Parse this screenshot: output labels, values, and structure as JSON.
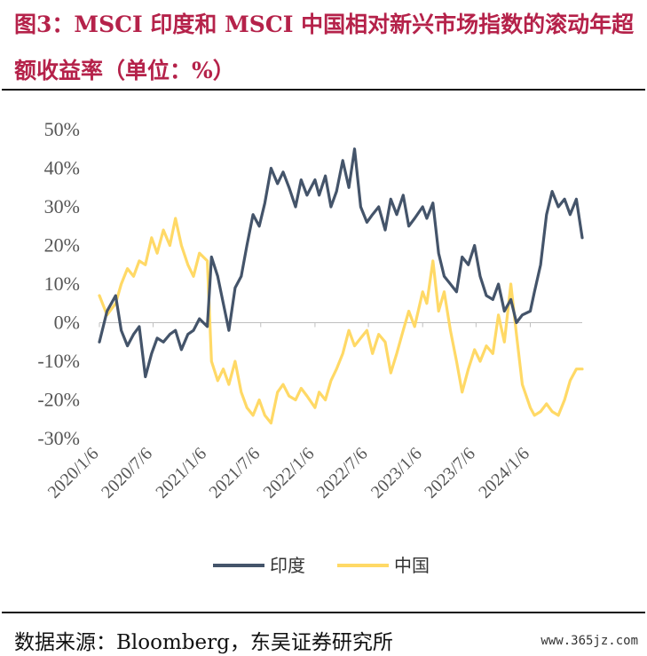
{
  "header": {
    "title": "图3：MSCI 印度和 MSCI 中国相对新兴市场指数的滚动年超额收益率（单位：%）"
  },
  "footer": {
    "source": "数据来源：Bloomberg，东吴证券研究所",
    "watermark": "www.365jz.com"
  },
  "colors": {
    "india": "#44546a",
    "china": "#ffd966",
    "title": "#b5224a"
  },
  "chart_data": {
    "type": "line",
    "title": "",
    "xlabel": "",
    "ylabel": "",
    "ylim": [
      -30,
      50
    ],
    "y_ticks": [
      "50%",
      "40%",
      "30%",
      "20%",
      "10%",
      "0%",
      "-10%",
      "-20%",
      "-30%"
    ],
    "x_range": [
      "2020-01-06",
      "2024-06-30"
    ],
    "x_ticks": [
      "2020/1/6",
      "2020/7/6",
      "2021/1/6",
      "2021/7/6",
      "2022/1/6",
      "2022/7/6",
      "2023/1/6",
      "2023/7/6",
      "2024/1/6"
    ],
    "legend_position": "bottom",
    "series": [
      {
        "name": "印度",
        "color": "#44546a",
        "x": [
          "2020-01-06",
          "2020-02-01",
          "2020-03-01",
          "2020-03-20",
          "2020-04-10",
          "2020-05-01",
          "2020-05-20",
          "2020-06-10",
          "2020-07-01",
          "2020-07-20",
          "2020-08-10",
          "2020-09-01",
          "2020-09-20",
          "2020-10-10",
          "2020-11-01",
          "2020-11-20",
          "2020-12-10",
          "2021-01-06",
          "2021-01-20",
          "2021-02-10",
          "2021-03-01",
          "2021-03-20",
          "2021-04-10",
          "2021-05-01",
          "2021-05-20",
          "2021-06-10",
          "2021-07-01",
          "2021-07-20",
          "2021-08-10",
          "2021-09-01",
          "2021-09-20",
          "2021-10-10",
          "2021-11-01",
          "2021-11-20",
          "2021-12-10",
          "2022-01-06",
          "2022-01-20",
          "2022-02-10",
          "2022-03-01",
          "2022-03-20",
          "2022-04-10",
          "2022-05-01",
          "2022-05-20",
          "2022-06-10",
          "2022-07-01",
          "2022-07-20",
          "2022-08-10",
          "2022-09-01",
          "2022-09-20",
          "2022-10-10",
          "2022-11-01",
          "2022-11-20",
          "2022-12-10",
          "2023-01-06",
          "2023-01-20",
          "2023-02-10",
          "2023-03-01",
          "2023-03-20",
          "2023-04-10",
          "2023-05-01",
          "2023-05-20",
          "2023-06-10",
          "2023-07-01",
          "2023-07-20",
          "2023-08-10",
          "2023-09-01",
          "2023-09-20",
          "2023-10-10",
          "2023-11-01",
          "2023-11-20",
          "2023-12-10",
          "2024-01-06",
          "2024-01-20",
          "2024-02-10",
          "2024-03-01",
          "2024-03-20",
          "2024-04-10",
          "2024-05-01",
          "2024-05-20",
          "2024-06-10",
          "2024-06-30"
        ],
        "values": [
          -5,
          3,
          7,
          -2,
          -6,
          -3,
          -1,
          -14,
          -8,
          -4,
          -5,
          -3,
          -2,
          -7,
          -3,
          -2,
          1,
          -1,
          17,
          12,
          5,
          -2,
          9,
          12,
          20,
          28,
          25,
          31,
          40,
          36,
          39,
          35,
          30,
          37,
          33,
          37,
          33,
          38,
          30,
          34,
          42,
          35,
          45,
          30,
          26,
          28,
          30,
          24,
          32,
          28,
          33,
          25,
          27,
          30,
          27,
          31,
          18,
          12,
          10,
          8,
          17,
          15,
          20,
          12,
          7,
          6,
          10,
          3,
          6,
          0,
          2,
          3,
          8,
          15,
          28,
          34,
          30,
          32,
          28,
          32,
          22
        ]
      },
      {
        "name": "中国",
        "color": "#ffd966",
        "x": [
          "2020-01-06",
          "2020-02-01",
          "2020-03-01",
          "2020-03-20",
          "2020-04-10",
          "2020-05-01",
          "2020-05-20",
          "2020-06-10",
          "2020-07-01",
          "2020-07-20",
          "2020-08-10",
          "2020-09-01",
          "2020-09-20",
          "2020-10-10",
          "2020-11-01",
          "2020-11-20",
          "2020-12-10",
          "2021-01-06",
          "2021-01-20",
          "2021-02-10",
          "2021-03-01",
          "2021-03-20",
          "2021-04-10",
          "2021-05-01",
          "2021-05-20",
          "2021-06-10",
          "2021-07-01",
          "2021-07-20",
          "2021-08-10",
          "2021-09-01",
          "2021-09-20",
          "2021-10-10",
          "2021-11-01",
          "2021-11-20",
          "2021-12-10",
          "2022-01-06",
          "2022-01-20",
          "2022-02-10",
          "2022-03-01",
          "2022-03-20",
          "2022-04-10",
          "2022-05-01",
          "2022-05-20",
          "2022-06-10",
          "2022-07-01",
          "2022-07-20",
          "2022-08-10",
          "2022-09-01",
          "2022-09-20",
          "2022-10-10",
          "2022-11-01",
          "2022-11-20",
          "2022-12-10",
          "2023-01-06",
          "2023-01-20",
          "2023-02-10",
          "2023-03-01",
          "2023-03-20",
          "2023-04-10",
          "2023-05-01",
          "2023-05-20",
          "2023-06-10",
          "2023-07-01",
          "2023-07-20",
          "2023-08-10",
          "2023-09-01",
          "2023-09-20",
          "2023-10-10",
          "2023-11-01",
          "2023-11-20",
          "2023-12-10",
          "2024-01-06",
          "2024-01-20",
          "2024-02-10",
          "2024-03-01",
          "2024-03-20",
          "2024-04-10",
          "2024-05-01",
          "2024-05-20",
          "2024-06-10",
          "2024-06-30"
        ],
        "values": [
          7,
          2,
          5,
          10,
          14,
          12,
          16,
          15,
          22,
          18,
          24,
          20,
          27,
          20,
          15,
          12,
          18,
          16,
          -10,
          -15,
          -12,
          -16,
          -10,
          -18,
          -22,
          -24,
          -20,
          -24,
          -26,
          -18,
          -16,
          -19,
          -20,
          -17,
          -19,
          -22,
          -18,
          -20,
          -15,
          -12,
          -8,
          -2,
          -6,
          -4,
          -2,
          -8,
          -3,
          -5,
          -13,
          -8,
          -2,
          3,
          -1,
          8,
          5,
          16,
          3,
          8,
          -2,
          -10,
          -18,
          -12,
          -7,
          -10,
          -6,
          -8,
          2,
          -5,
          10,
          -3,
          -16,
          -22,
          -24,
          -23,
          -21,
          -23,
          -24,
          -20,
          -15,
          -12,
          -12
        ]
      }
    ]
  }
}
